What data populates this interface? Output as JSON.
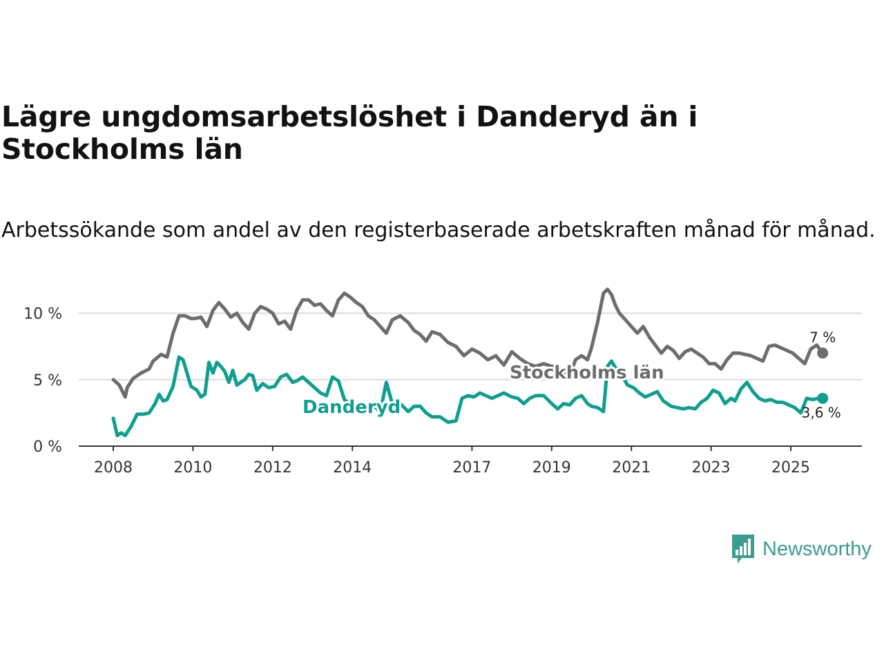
{
  "title": "Lägre ungdomsarbetslöshet i Danderyd än i Stockholms län",
  "subtitle": "Arbetssökande som andel av den registerbaserade arbetskraften månad för månad.",
  "colors": {
    "stockholm": "#6d6d70",
    "danderyd": "#0f9f8f",
    "grid": "#dcdcdc",
    "axis": "#333333"
  },
  "brand": {
    "name": "Newsworthy",
    "icon": "bar-chart-speech-bubble-icon",
    "color": "#3a9d8f"
  },
  "chart_data": {
    "type": "line",
    "title": "Lägre ungdomsarbetslöshet i Danderyd än i Stockholms län",
    "xlabel": "",
    "ylabel": "",
    "xlim": [
      2008,
      2025.9
    ],
    "ylim": [
      0,
      12
    ],
    "yticks": [
      0,
      5,
      10
    ],
    "ytick_labels": [
      "0 %",
      "5 %",
      "10 %"
    ],
    "xticks": [
      2008,
      2010,
      2012,
      2014,
      2017,
      2019,
      2021,
      2023,
      2025
    ],
    "xtick_labels": [
      "2008",
      "2010",
      "2012",
      "2014",
      "2017",
      "2019",
      "2021",
      "2023",
      "2025"
    ],
    "grid": true,
    "legend": "inline labels",
    "series": [
      {
        "name": "Stockholms län",
        "key": "stockholm",
        "end_label": "7 %",
        "x": [
          2008.0,
          2008.15,
          2008.3,
          2008.35,
          2008.5,
          2008.7,
          2008.9,
          2009.0,
          2009.2,
          2009.35,
          2009.5,
          2009.65,
          2009.8,
          2009.95,
          2010.05,
          2010.2,
          2010.35,
          2010.5,
          2010.65,
          2010.8,
          2010.95,
          2011.1,
          2011.25,
          2011.4,
          2011.55,
          2011.7,
          2011.85,
          2012.0,
          2012.15,
          2012.3,
          2012.45,
          2012.6,
          2012.75,
          2012.9,
          2013.05,
          2013.2,
          2013.35,
          2013.5,
          2013.65,
          2013.8,
          2013.95,
          2014.1,
          2014.25,
          2014.4,
          2014.55,
          2014.7,
          2014.85,
          2015.0,
          2015.2,
          2015.4,
          2015.55,
          2015.7,
          2015.85,
          2016.0,
          2016.2,
          2016.4,
          2016.6,
          2016.8,
          2017.0,
          2017.2,
          2017.4,
          2017.6,
          2017.8,
          2018.0,
          2018.2,
          2018.4,
          2018.6,
          2018.8,
          2019.0,
          2019.15,
          2019.3,
          2019.45,
          2019.6,
          2019.75,
          2019.9,
          2020.0,
          2020.15,
          2020.3,
          2020.4,
          2020.5,
          2020.6,
          2020.7,
          2020.85,
          2021.0,
          2021.15,
          2021.3,
          2021.45,
          2021.6,
          2021.75,
          2021.9,
          2022.05,
          2022.2,
          2022.35,
          2022.5,
          2022.65,
          2022.8,
          2022.95,
          2023.1,
          2023.25,
          2023.4,
          2023.55,
          2023.7,
          2023.85,
          2024.0,
          2024.15,
          2024.3,
          2024.45,
          2024.6,
          2024.75,
          2024.9,
          2025.05,
          2025.2,
          2025.35,
          2025.5,
          2025.65,
          2025.8
        ],
        "values": [
          5.0,
          4.6,
          3.7,
          4.4,
          5.1,
          5.5,
          5.8,
          6.4,
          6.9,
          6.7,
          8.5,
          9.8,
          9.8,
          9.6,
          9.6,
          9.7,
          9.0,
          10.2,
          10.8,
          10.3,
          9.7,
          10.0,
          9.3,
          8.8,
          10.0,
          10.5,
          10.3,
          10.0,
          9.2,
          9.4,
          8.8,
          10.2,
          11.0,
          11.0,
          10.6,
          10.7,
          10.2,
          9.8,
          11.0,
          11.5,
          11.2,
          10.8,
          10.5,
          9.8,
          9.5,
          9.0,
          8.5,
          9.5,
          9.8,
          9.3,
          8.7,
          8.4,
          7.9,
          8.6,
          8.4,
          7.8,
          7.5,
          6.8,
          7.3,
          7.0,
          6.5,
          6.8,
          6.1,
          7.1,
          6.6,
          6.2,
          6.0,
          6.2,
          6.0,
          6.0,
          5.6,
          5.3,
          6.5,
          6.8,
          6.5,
          7.4,
          9.3,
          11.5,
          11.8,
          11.4,
          10.6,
          10.0,
          9.5,
          9.0,
          8.5,
          9.0,
          8.2,
          7.6,
          7.0,
          7.5,
          7.2,
          6.6,
          7.1,
          7.3,
          7.0,
          6.7,
          6.2,
          6.2,
          5.8,
          6.5,
          7.0,
          7.0,
          6.9,
          6.8,
          6.6,
          6.4,
          7.5,
          7.6,
          7.4,
          7.2,
          7.0,
          6.6,
          6.2,
          7.3,
          7.6,
          7.0
        ]
      },
      {
        "name": "Danderyd",
        "key": "danderyd",
        "end_label": "3,6 %",
        "x": [
          2008.0,
          2008.1,
          2008.2,
          2008.3,
          2008.45,
          2008.6,
          2008.75,
          2008.9,
          2009.05,
          2009.15,
          2009.25,
          2009.35,
          2009.5,
          2009.65,
          2009.75,
          2009.85,
          2009.95,
          2010.1,
          2010.2,
          2010.3,
          2010.4,
          2010.5,
          2010.6,
          2010.7,
          2010.8,
          2010.9,
          2011.0,
          2011.1,
          2011.2,
          2011.3,
          2011.4,
          2011.5,
          2011.6,
          2011.75,
          2011.9,
          2012.05,
          2012.2,
          2012.35,
          2012.5,
          2012.6,
          2012.75,
          2012.9,
          2013.05,
          2013.2,
          2013.35,
          2013.5,
          2013.65,
          2013.8,
          2013.95,
          2014.1,
          2014.25,
          2014.4,
          2014.55,
          2014.7,
          2014.85,
          2015.0,
          2015.2,
          2015.4,
          2015.55,
          2015.7,
          2015.85,
          2016.0,
          2016.2,
          2016.4,
          2016.6,
          2016.75,
          2016.9,
          2017.05,
          2017.2,
          2017.35,
          2017.5,
          2017.65,
          2017.8,
          2018.0,
          2018.15,
          2018.3,
          2018.45,
          2018.6,
          2018.8,
          2019.0,
          2019.15,
          2019.3,
          2019.45,
          2019.6,
          2019.75,
          2019.9,
          2020.0,
          2020.15,
          2020.3,
          2020.4,
          2020.5,
          2020.6,
          2020.75,
          2020.9,
          2021.05,
          2021.2,
          2021.35,
          2021.5,
          2021.65,
          2021.8,
          2022.0,
          2022.15,
          2022.3,
          2022.45,
          2022.6,
          2022.75,
          2022.9,
          2023.05,
          2023.2,
          2023.35,
          2023.5,
          2023.6,
          2023.75,
          2023.9,
          2024.05,
          2024.2,
          2024.35,
          2024.5,
          2024.65,
          2024.8,
          2024.95,
          2025.1,
          2025.25,
          2025.4,
          2025.55,
          2025.7,
          2025.8
        ],
        "values": [
          2.1,
          0.8,
          1.0,
          0.8,
          1.5,
          2.4,
          2.4,
          2.5,
          3.2,
          3.9,
          3.4,
          3.5,
          4.5,
          6.7,
          6.5,
          5.5,
          4.5,
          4.2,
          3.7,
          3.9,
          6.3,
          5.5,
          6.3,
          6.0,
          5.6,
          4.8,
          5.7,
          4.6,
          4.8,
          5.0,
          5.4,
          5.3,
          4.2,
          4.7,
          4.4,
          4.5,
          5.2,
          5.4,
          4.8,
          4.9,
          5.2,
          4.8,
          4.4,
          4.0,
          3.8,
          5.2,
          4.9,
          3.5,
          3.1,
          3.0,
          2.8,
          2.5,
          3.0,
          2.6,
          4.8,
          3.2,
          3.2,
          2.6,
          3.0,
          3.0,
          2.5,
          2.2,
          2.2,
          1.8,
          1.9,
          3.6,
          3.8,
          3.7,
          4.0,
          3.8,
          3.6,
          3.8,
          4.0,
          3.7,
          3.6,
          3.2,
          3.6,
          3.8,
          3.8,
          3.2,
          2.8,
          3.2,
          3.1,
          3.6,
          3.8,
          3.2,
          3.0,
          2.9,
          2.6,
          6.0,
          6.4,
          5.9,
          5.4,
          4.6,
          4.4,
          4.0,
          3.7,
          3.9,
          4.1,
          3.4,
          3.0,
          2.9,
          2.8,
          2.9,
          2.8,
          3.3,
          3.6,
          4.2,
          4.0,
          3.2,
          3.6,
          3.4,
          4.3,
          4.8,
          4.1,
          3.6,
          3.4,
          3.5,
          3.3,
          3.3,
          3.1,
          2.9,
          2.5,
          3.6,
          3.5,
          3.6,
          3.6
        ]
      }
    ]
  }
}
